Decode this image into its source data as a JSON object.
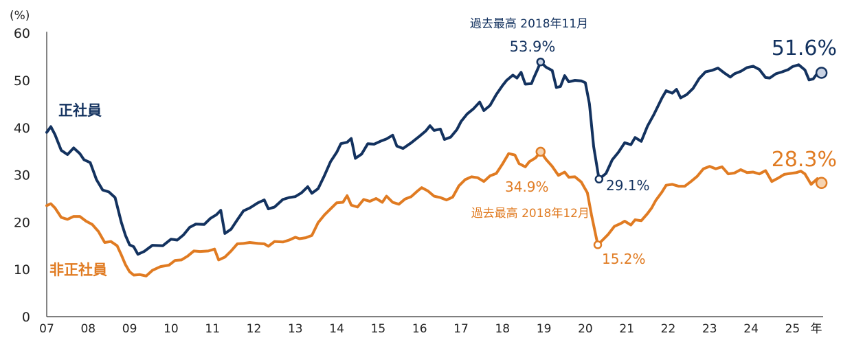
{
  "chart_data": {
    "type": "line",
    "yunit": "(%)",
    "ylim": [
      0,
      60
    ],
    "yticks": [
      0,
      10,
      20,
      30,
      40,
      50,
      60
    ],
    "xlim": [
      2007,
      2025.8
    ],
    "xticks": [
      {
        "x": 2007,
        "label": "07"
      },
      {
        "x": 2008,
        "label": "08"
      },
      {
        "x": 2009,
        "label": "09"
      },
      {
        "x": 2010,
        "label": "10"
      },
      {
        "x": 2011,
        "label": "11"
      },
      {
        "x": 2012,
        "label": "12"
      },
      {
        "x": 2013,
        "label": "13"
      },
      {
        "x": 2014,
        "label": "14"
      },
      {
        "x": 2015,
        "label": "15"
      },
      {
        "x": 2016,
        "label": "16"
      },
      {
        "x": 2017,
        "label": "17"
      },
      {
        "x": 2018,
        "label": "18"
      },
      {
        "x": 2019,
        "label": "19"
      },
      {
        "x": 2020,
        "label": "20"
      },
      {
        "x": 2021,
        "label": "21"
      },
      {
        "x": 2022,
        "label": "22"
      },
      {
        "x": 2023,
        "label": "23"
      },
      {
        "x": 2024,
        "label": "24"
      },
      {
        "x": 2025,
        "label": "25"
      }
    ],
    "xunit": "年",
    "grid": false,
    "series": [
      {
        "name": "正社員",
        "color": "#13325f",
        "points": [
          [
            2007.0,
            39.0
          ],
          [
            2007.1,
            40.2
          ],
          [
            2007.2,
            38.5
          ],
          [
            2007.35,
            35.2
          ],
          [
            2007.5,
            34.3
          ],
          [
            2007.65,
            35.7
          ],
          [
            2007.8,
            34.5
          ],
          [
            2007.9,
            33.2
          ],
          [
            2008.05,
            32.6
          ],
          [
            2008.2,
            29.0
          ],
          [
            2008.35,
            26.8
          ],
          [
            2008.5,
            26.4
          ],
          [
            2008.65,
            25.2
          ],
          [
            2008.8,
            20.0
          ],
          [
            2008.9,
            17.2
          ],
          [
            2009.0,
            15.2
          ],
          [
            2009.1,
            14.8
          ],
          [
            2009.2,
            13.2
          ],
          [
            2009.35,
            13.8
          ],
          [
            2009.55,
            15.1
          ],
          [
            2009.8,
            15.0
          ],
          [
            2010.0,
            16.4
          ],
          [
            2010.15,
            16.2
          ],
          [
            2010.3,
            17.3
          ],
          [
            2010.45,
            18.9
          ],
          [
            2010.6,
            19.6
          ],
          [
            2010.8,
            19.5
          ],
          [
            2010.95,
            20.8
          ],
          [
            2011.1,
            21.6
          ],
          [
            2011.2,
            22.5
          ],
          [
            2011.3,
            17.6
          ],
          [
            2011.45,
            18.5
          ],
          [
            2011.6,
            20.5
          ],
          [
            2011.75,
            22.4
          ],
          [
            2011.9,
            23.0
          ],
          [
            2012.1,
            24.1
          ],
          [
            2012.25,
            24.7
          ],
          [
            2012.35,
            22.8
          ],
          [
            2012.5,
            23.2
          ],
          [
            2012.7,
            24.8
          ],
          [
            2012.85,
            25.2
          ],
          [
            2013.0,
            25.4
          ],
          [
            2013.15,
            26.2
          ],
          [
            2013.3,
            27.5
          ],
          [
            2013.4,
            26.1
          ],
          [
            2013.55,
            27.1
          ],
          [
            2013.7,
            29.8
          ],
          [
            2013.85,
            32.8
          ],
          [
            2014.0,
            34.8
          ],
          [
            2014.1,
            36.6
          ],
          [
            2014.25,
            36.9
          ],
          [
            2014.35,
            37.7
          ],
          [
            2014.45,
            33.5
          ],
          [
            2014.6,
            34.4
          ],
          [
            2014.75,
            36.6
          ],
          [
            2014.9,
            36.5
          ],
          [
            2015.05,
            37.1
          ],
          [
            2015.2,
            37.6
          ],
          [
            2015.35,
            38.4
          ],
          [
            2015.45,
            36.1
          ],
          [
            2015.6,
            35.6
          ],
          [
            2015.8,
            36.8
          ],
          [
            2016.0,
            38.2
          ],
          [
            2016.15,
            39.3
          ],
          [
            2016.25,
            40.4
          ],
          [
            2016.35,
            39.4
          ],
          [
            2016.5,
            39.7
          ],
          [
            2016.6,
            37.5
          ],
          [
            2016.75,
            38.0
          ],
          [
            2016.9,
            39.6
          ],
          [
            2017.0,
            41.3
          ],
          [
            2017.15,
            42.9
          ],
          [
            2017.3,
            44.0
          ],
          [
            2017.45,
            45.4
          ],
          [
            2017.55,
            43.6
          ],
          [
            2017.7,
            44.7
          ],
          [
            2017.85,
            47.0
          ],
          [
            2018.0,
            48.9
          ],
          [
            2018.1,
            50.0
          ],
          [
            2018.25,
            51.1
          ],
          [
            2018.35,
            50.5
          ],
          [
            2018.45,
            51.7
          ],
          [
            2018.55,
            49.2
          ],
          [
            2018.7,
            49.3
          ],
          [
            2018.75,
            50.4
          ],
          [
            2018.85,
            52.4
          ],
          [
            2018.92,
            53.9
          ],
          [
            2019.05,
            52.8
          ],
          [
            2019.2,
            52.1
          ],
          [
            2019.3,
            48.5
          ],
          [
            2019.4,
            48.7
          ],
          [
            2019.5,
            51.0
          ],
          [
            2019.6,
            49.7
          ],
          [
            2019.75,
            50.0
          ],
          [
            2019.9,
            49.9
          ],
          [
            2020.0,
            49.5
          ],
          [
            2020.1,
            45.0
          ],
          [
            2020.2,
            36.0
          ],
          [
            2020.33,
            29.1
          ],
          [
            2020.5,
            30.3
          ],
          [
            2020.65,
            33.2
          ],
          [
            2020.8,
            34.8
          ],
          [
            2020.95,
            36.8
          ],
          [
            2021.1,
            36.4
          ],
          [
            2021.2,
            37.9
          ],
          [
            2021.35,
            37.1
          ],
          [
            2021.5,
            40.3
          ],
          [
            2021.65,
            42.7
          ],
          [
            2021.85,
            46.3
          ],
          [
            2021.95,
            47.8
          ],
          [
            2022.1,
            47.3
          ],
          [
            2022.2,
            48.1
          ],
          [
            2022.3,
            46.3
          ],
          [
            2022.45,
            47.0
          ],
          [
            2022.6,
            48.3
          ],
          [
            2022.75,
            50.4
          ],
          [
            2022.9,
            51.8
          ],
          [
            2023.05,
            52.1
          ],
          [
            2023.2,
            52.6
          ],
          [
            2023.35,
            51.6
          ],
          [
            2023.5,
            50.7
          ],
          [
            2023.6,
            51.4
          ],
          [
            2023.75,
            51.9
          ],
          [
            2023.9,
            52.7
          ],
          [
            2024.05,
            53.0
          ],
          [
            2024.2,
            52.3
          ],
          [
            2024.35,
            50.6
          ],
          [
            2024.45,
            50.5
          ],
          [
            2024.6,
            51.4
          ],
          [
            2024.75,
            51.8
          ],
          [
            2024.9,
            52.3
          ],
          [
            2025.0,
            52.9
          ],
          [
            2025.15,
            53.3
          ],
          [
            2025.3,
            52.2
          ],
          [
            2025.4,
            50.1
          ],
          [
            2025.5,
            50.3
          ],
          [
            2025.6,
            51.5
          ],
          [
            2025.7,
            51.6
          ]
        ]
      },
      {
        "name": "非正社員",
        "color": "#e07b22",
        "points": [
          [
            2007.0,
            23.5
          ],
          [
            2007.1,
            23.9
          ],
          [
            2007.2,
            23.0
          ],
          [
            2007.35,
            21.0
          ],
          [
            2007.5,
            20.6
          ],
          [
            2007.65,
            21.2
          ],
          [
            2007.8,
            21.2
          ],
          [
            2007.95,
            20.2
          ],
          [
            2008.1,
            19.5
          ],
          [
            2008.25,
            18.0
          ],
          [
            2008.4,
            15.7
          ],
          [
            2008.55,
            15.9
          ],
          [
            2008.7,
            15.0
          ],
          [
            2008.8,
            13.1
          ],
          [
            2008.9,
            11.0
          ],
          [
            2009.0,
            9.5
          ],
          [
            2009.1,
            8.8
          ],
          [
            2009.25,
            8.9
          ],
          [
            2009.4,
            8.6
          ],
          [
            2009.55,
            9.8
          ],
          [
            2009.75,
            10.6
          ],
          [
            2009.95,
            10.9
          ],
          [
            2010.1,
            11.9
          ],
          [
            2010.25,
            12.0
          ],
          [
            2010.4,
            12.8
          ],
          [
            2010.55,
            13.9
          ],
          [
            2010.7,
            13.8
          ],
          [
            2010.9,
            13.9
          ],
          [
            2011.05,
            14.3
          ],
          [
            2011.15,
            12.0
          ],
          [
            2011.3,
            12.6
          ],
          [
            2011.45,
            13.9
          ],
          [
            2011.6,
            15.4
          ],
          [
            2011.75,
            15.5
          ],
          [
            2011.9,
            15.7
          ],
          [
            2012.1,
            15.5
          ],
          [
            2012.25,
            15.4
          ],
          [
            2012.35,
            14.9
          ],
          [
            2012.5,
            15.9
          ],
          [
            2012.7,
            15.8
          ],
          [
            2012.85,
            16.2
          ],
          [
            2013.0,
            16.8
          ],
          [
            2013.1,
            16.5
          ],
          [
            2013.25,
            16.7
          ],
          [
            2013.4,
            17.2
          ],
          [
            2013.55,
            19.9
          ],
          [
            2013.7,
            21.5
          ],
          [
            2013.85,
            22.8
          ],
          [
            2014.0,
            24.1
          ],
          [
            2014.15,
            24.2
          ],
          [
            2014.25,
            25.6
          ],
          [
            2014.35,
            23.6
          ],
          [
            2014.5,
            23.2
          ],
          [
            2014.65,
            24.8
          ],
          [
            2014.8,
            24.4
          ],
          [
            2014.95,
            25.0
          ],
          [
            2015.1,
            24.2
          ],
          [
            2015.2,
            25.5
          ],
          [
            2015.35,
            24.2
          ],
          [
            2015.5,
            23.8
          ],
          [
            2015.65,
            24.9
          ],
          [
            2015.8,
            25.4
          ],
          [
            2015.95,
            26.6
          ],
          [
            2016.05,
            27.3
          ],
          [
            2016.2,
            26.6
          ],
          [
            2016.35,
            25.5
          ],
          [
            2016.5,
            25.2
          ],
          [
            2016.65,
            24.7
          ],
          [
            2016.8,
            25.3
          ],
          [
            2016.95,
            27.7
          ],
          [
            2017.1,
            29.0
          ],
          [
            2017.25,
            29.6
          ],
          [
            2017.4,
            29.4
          ],
          [
            2017.55,
            28.6
          ],
          [
            2017.7,
            29.8
          ],
          [
            2017.85,
            30.3
          ],
          [
            2018.0,
            32.3
          ],
          [
            2018.15,
            34.5
          ],
          [
            2018.3,
            34.2
          ],
          [
            2018.4,
            32.4
          ],
          [
            2018.55,
            31.7
          ],
          [
            2018.65,
            32.8
          ],
          [
            2018.8,
            33.6
          ],
          [
            2018.92,
            34.9
          ],
          [
            2019.05,
            33.3
          ],
          [
            2019.2,
            31.8
          ],
          [
            2019.35,
            29.9
          ],
          [
            2019.5,
            30.6
          ],
          [
            2019.6,
            29.5
          ],
          [
            2019.75,
            29.6
          ],
          [
            2019.9,
            28.5
          ],
          [
            2020.05,
            26.2
          ],
          [
            2020.15,
            21.5
          ],
          [
            2020.3,
            15.2
          ],
          [
            2020.45,
            16.5
          ],
          [
            2020.55,
            17.4
          ],
          [
            2020.7,
            19.1
          ],
          [
            2020.85,
            19.7
          ],
          [
            2020.95,
            20.2
          ],
          [
            2021.1,
            19.4
          ],
          [
            2021.2,
            20.5
          ],
          [
            2021.35,
            20.3
          ],
          [
            2021.5,
            21.8
          ],
          [
            2021.6,
            23.0
          ],
          [
            2021.7,
            24.6
          ],
          [
            2021.85,
            26.4
          ],
          [
            2021.95,
            27.8
          ],
          [
            2022.1,
            28.0
          ],
          [
            2022.25,
            27.6
          ],
          [
            2022.4,
            27.6
          ],
          [
            2022.55,
            28.6
          ],
          [
            2022.7,
            29.7
          ],
          [
            2022.85,
            31.3
          ],
          [
            2023.0,
            31.8
          ],
          [
            2023.15,
            31.3
          ],
          [
            2023.3,
            31.7
          ],
          [
            2023.45,
            30.2
          ],
          [
            2023.6,
            30.4
          ],
          [
            2023.75,
            31.1
          ],
          [
            2023.9,
            30.5
          ],
          [
            2024.05,
            30.6
          ],
          [
            2024.2,
            30.2
          ],
          [
            2024.35,
            30.9
          ],
          [
            2024.5,
            28.6
          ],
          [
            2024.65,
            29.3
          ],
          [
            2024.8,
            30.1
          ],
          [
            2024.95,
            30.3
          ],
          [
            2025.1,
            30.5
          ],
          [
            2025.2,
            30.8
          ],
          [
            2025.3,
            30.2
          ],
          [
            2025.45,
            28.0
          ],
          [
            2025.6,
            29.2
          ],
          [
            2025.7,
            28.3
          ]
        ]
      }
    ],
    "annotations": [
      {
        "id": "seishain_peak",
        "series": 0,
        "x": 2018.92,
        "y": 53.9,
        "value_label": "53.9%",
        "caption": "過去最高 2018年11月"
      },
      {
        "id": "seishain_low",
        "series": 0,
        "x": 2020.33,
        "y": 29.1,
        "value_label": "29.1%"
      },
      {
        "id": "seishain_latest",
        "series": 0,
        "x": 2025.7,
        "y": 51.6,
        "value_label": "51.6%"
      },
      {
        "id": "hiseishain_peak",
        "series": 1,
        "x": 2018.92,
        "y": 34.9,
        "value_label": "34.9%",
        "caption": "過去最高 2018年12月"
      },
      {
        "id": "hiseishain_low",
        "series": 1,
        "x": 2020.3,
        "y": 15.2,
        "value_label": "15.2%"
      },
      {
        "id": "hiseishain_latest",
        "series": 1,
        "x": 2025.7,
        "y": 28.3,
        "value_label": "28.3%"
      }
    ]
  }
}
